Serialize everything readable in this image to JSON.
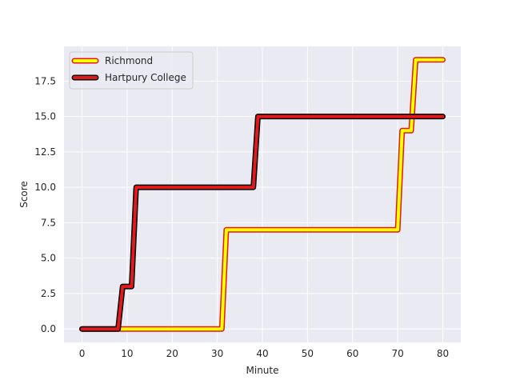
{
  "chart_data": {
    "type": "line",
    "title": "",
    "xlabel": "Minute",
    "ylabel": "Score",
    "xlim": [
      -4,
      84
    ],
    "ylim": [
      -0.95,
      19.95
    ],
    "xticks": [
      0,
      10,
      20,
      30,
      40,
      50,
      60,
      70,
      80
    ],
    "yticks": [
      0.0,
      2.5,
      5.0,
      7.5,
      10.0,
      12.5,
      15.0,
      17.5
    ],
    "ytick_labels": [
      "0.0",
      "2.5",
      "5.0",
      "7.5",
      "10.0",
      "12.5",
      "15.0",
      "17.5"
    ],
    "grid": true,
    "legend_position": "upper-left",
    "series": [
      {
        "name": "Richmond",
        "fill_color": "#ffff00",
        "edge_color": "#e31a1c",
        "x": [
          0,
          31,
          32,
          70,
          71,
          72,
          73,
          74,
          80
        ],
        "y": [
          0,
          0,
          7,
          7,
          14,
          14,
          14,
          19,
          19
        ]
      },
      {
        "name": "Hartpury College",
        "fill_color": "#e31a1c",
        "edge_color": "#000000",
        "x": [
          0,
          8,
          9,
          11,
          12,
          38,
          39,
          80
        ],
        "y": [
          0,
          0,
          3,
          3,
          10,
          10,
          15,
          15
        ]
      }
    ]
  }
}
